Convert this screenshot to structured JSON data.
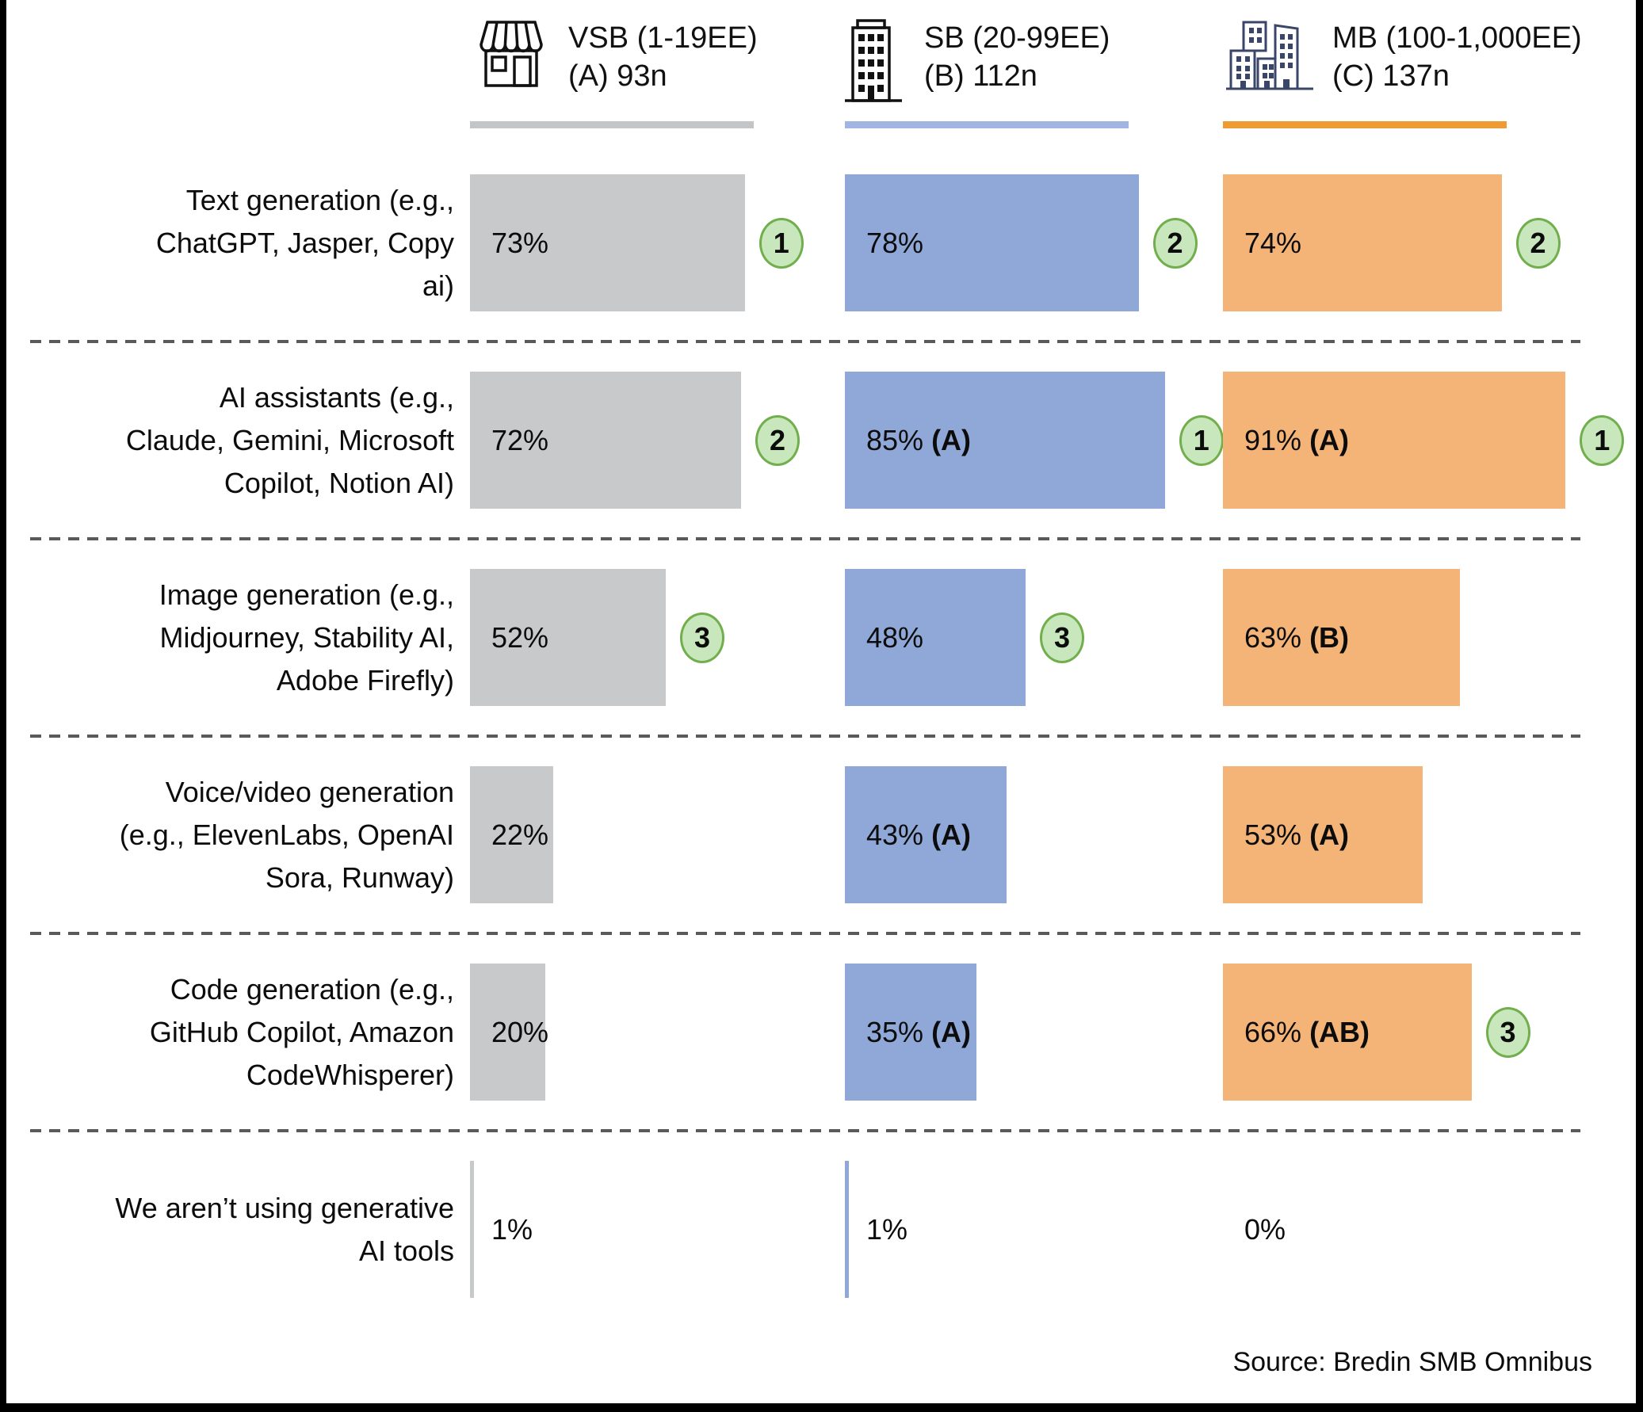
{
  "colors": {
    "bar_vsb": "#C8C9CB",
    "bar_sb": "#8FA8D8",
    "bar_mb": "#F4B478",
    "underline_vsb": "#C3C5C7",
    "underline_sb": "#A0B5E2",
    "underline_mb": "#EE9B33",
    "badge_fill": "#C9E7BD",
    "badge_border": "#71AE4C",
    "separator": "#5A5A5A"
  },
  "header": {
    "columns": [
      {
        "id": "vsb",
        "line1": "VSB (1-19EE)",
        "line2": "(A) 93n"
      },
      {
        "id": "sb",
        "line1": "SB (20-99EE)",
        "line2": "(B) 112n"
      },
      {
        "id": "mb",
        "line1": "MB (100-1,000EE)",
        "line2": "(C) 137n"
      }
    ]
  },
  "rows": [
    {
      "label_lines": [
        "Text generation (e.g.,",
        "ChatGPT, Jasper, Copy",
        "ai)"
      ],
      "cells": [
        {
          "pct": 73,
          "value": "73%",
          "sig": "",
          "badge": "1"
        },
        {
          "pct": 78,
          "value": "78%",
          "sig": "",
          "badge": "2"
        },
        {
          "pct": 74,
          "value": "74%",
          "sig": "",
          "badge": "2"
        }
      ]
    },
    {
      "label_lines": [
        "AI assistants (e.g.,",
        "Claude, Gemini, Microsoft",
        "Copilot, Notion AI)"
      ],
      "cells": [
        {
          "pct": 72,
          "value": "72%",
          "sig": "",
          "badge": "2"
        },
        {
          "pct": 85,
          "value": "85%",
          "sig": "(A)",
          "badge": "1"
        },
        {
          "pct": 91,
          "value": "91%",
          "sig": "(A)",
          "badge": "1"
        }
      ]
    },
    {
      "label_lines": [
        "Image generation (e.g.,",
        "Midjourney, Stability AI,",
        "Adobe Firefly)"
      ],
      "cells": [
        {
          "pct": 52,
          "value": "52%",
          "sig": "",
          "badge": "3"
        },
        {
          "pct": 48,
          "value": "48%",
          "sig": "",
          "badge": "3"
        },
        {
          "pct": 63,
          "value": "63%",
          "sig": "(B)",
          "badge": ""
        }
      ]
    },
    {
      "label_lines": [
        "Voice/video generation",
        "(e.g., ElevenLabs, OpenAI",
        "Sora, Runway)"
      ],
      "cells": [
        {
          "pct": 22,
          "value": "22%",
          "sig": "",
          "badge": ""
        },
        {
          "pct": 43,
          "value": "43%",
          "sig": "(A)",
          "badge": ""
        },
        {
          "pct": 53,
          "value": "53%",
          "sig": "(A)",
          "badge": ""
        }
      ]
    },
    {
      "label_lines": [
        "Code generation (e.g.,",
        "GitHub Copilot, Amazon",
        "CodeWhisperer)"
      ],
      "cells": [
        {
          "pct": 20,
          "value": "20%",
          "sig": "",
          "badge": ""
        },
        {
          "pct": 35,
          "value": "35%",
          "sig": "(A)",
          "badge": ""
        },
        {
          "pct": 66,
          "value": "66%",
          "sig": "(AB)",
          "badge": "3"
        }
      ]
    },
    {
      "label_lines": [
        "We aren’t using generative",
        "AI tools"
      ],
      "cells": [
        {
          "pct": 1,
          "value": "1%",
          "sig": "",
          "badge": ""
        },
        {
          "pct": 1,
          "value": "1%",
          "sig": "",
          "badge": ""
        },
        {
          "pct": 0,
          "value": "0%",
          "sig": "",
          "badge": ""
        }
      ]
    }
  ],
  "source": "Source: Bredin SMB Omnibus",
  "chart_data": {
    "type": "bar",
    "orientation": "horizontal",
    "title": "",
    "categories": [
      "Text generation (e.g., ChatGPT, Jasper, Copy ai)",
      "AI assistants (e.g., Claude, Gemini, Microsoft Copilot, Notion AI)",
      "Image generation (e.g., Midjourney, Stability AI, Adobe Firefly)",
      "Voice/video generation (e.g., ElevenLabs, OpenAI Sora, Runway)",
      "Code generation (e.g., GitHub Copilot, Amazon CodeWhisperer)",
      "We aren’t using generative AI tools"
    ],
    "series": [
      {
        "name": "VSB (1-19EE) (A) 93n",
        "values": [
          73,
          72,
          52,
          22,
          20,
          1
        ],
        "data_labels": [
          "73%",
          "72%",
          "52%",
          "22%",
          "20%",
          "1%"
        ],
        "rank_badges": [
          "1",
          "2",
          "3",
          "",
          "",
          ""
        ],
        "color": "#C8C9CB"
      },
      {
        "name": "SB (20-99EE) (B) 112n",
        "values": [
          78,
          85,
          48,
          43,
          35,
          1
        ],
        "data_labels": [
          "78%",
          "85% (A)",
          "48%",
          "43% (A)",
          "35% (A)",
          "1%"
        ],
        "rank_badges": [
          "2",
          "1",
          "3",
          "",
          "",
          ""
        ],
        "color": "#8FA8D8"
      },
      {
        "name": "MB (100-1,000EE) (C) 137n",
        "values": [
          74,
          91,
          63,
          53,
          66,
          0
        ],
        "data_labels": [
          "74%",
          "91% (A)",
          "63% (B)",
          "53% (A)",
          "66% (AB)",
          "0%"
        ],
        "rank_badges": [
          "2",
          "1",
          "",
          "",
          "3",
          ""
        ],
        "color": "#F4B478"
      }
    ],
    "xlim": [
      0,
      100
    ],
    "grid": false,
    "legend_position": "top",
    "source": "Source: Bredin SMB Omnibus"
  }
}
